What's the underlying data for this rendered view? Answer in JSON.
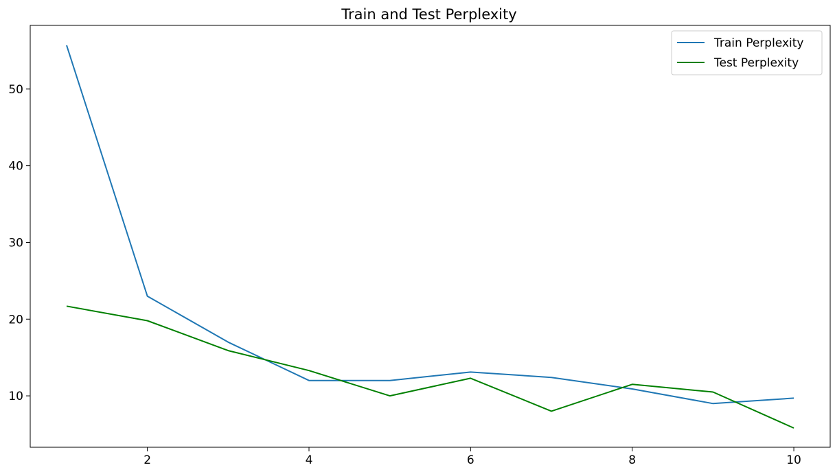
{
  "chart_data": {
    "type": "line",
    "title": "Train and Test Perplexity",
    "xlabel": "",
    "ylabel": "",
    "x": [
      1,
      2,
      3,
      4,
      5,
      6,
      7,
      8,
      9,
      10
    ],
    "series": [
      {
        "name": "Train Perplexity",
        "color": "#1f77b4",
        "values": [
          55.7,
          23.0,
          17.0,
          12.0,
          12.0,
          13.1,
          12.4,
          10.9,
          9.0,
          9.7
        ]
      },
      {
        "name": "Test Perplexity",
        "color": "#008000",
        "values": [
          21.7,
          19.8,
          15.9,
          13.3,
          10.0,
          12.3,
          8.0,
          11.5,
          10.5,
          5.8
        ]
      }
    ],
    "xlim": [
      0.55,
      10.45
    ],
    "ylim": [
      3.3,
      58.3
    ],
    "xticks": [
      2,
      4,
      6,
      8,
      10
    ],
    "yticks": [
      10,
      20,
      30,
      40,
      50
    ],
    "grid": false,
    "legend_position": "top-right"
  }
}
